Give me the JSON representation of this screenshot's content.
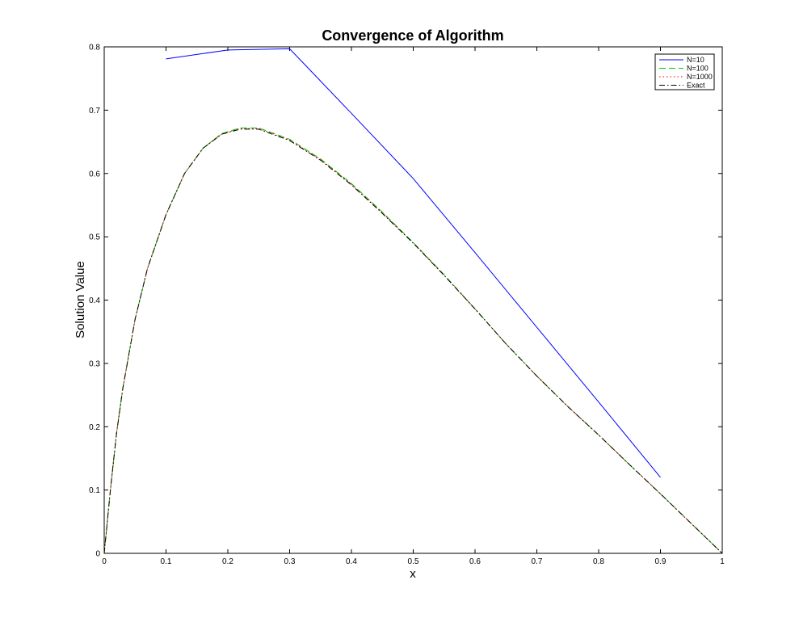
{
  "chart_data": {
    "type": "line",
    "title": "Convergence of Algorithm",
    "xlabel": "x",
    "ylabel": "Solution Value",
    "xlim": [
      0,
      1
    ],
    "ylim": [
      0,
      0.8
    ],
    "xticks": [
      0,
      0.1,
      0.2,
      0.3,
      0.4,
      0.5,
      0.6,
      0.7,
      0.8,
      0.9,
      1
    ],
    "xtick_labels": [
      "0",
      "0.1",
      "0.2",
      "0.3",
      "0.4",
      "0.5",
      "0.6",
      "0.7",
      "0.8",
      "0.9",
      "1"
    ],
    "yticks": [
      0,
      0.1,
      0.2,
      0.3,
      0.4,
      0.5,
      0.6,
      0.7,
      0.8
    ],
    "ytick_labels": [
      "0",
      "0.1",
      "0.2",
      "0.3",
      "0.4",
      "0.5",
      "0.6",
      "0.7",
      "0.8"
    ],
    "grid": false,
    "legend_position": "top-right",
    "series": [
      {
        "name": "N=10",
        "color": "#0000ff",
        "style": "solid",
        "x": [
          0.1,
          0.2,
          0.3,
          0.4,
          0.5,
          0.6,
          0.7,
          0.8,
          0.9
        ],
        "y": [
          0.781,
          0.795,
          0.797,
          0.695,
          0.592,
          0.475,
          0.357,
          0.239,
          0.12
        ]
      },
      {
        "name": "N=100",
        "color": "#00cc00",
        "style": "dashed",
        "x": [
          0,
          0.01,
          0.02,
          0.03,
          0.05,
          0.07,
          0.1,
          0.13,
          0.16,
          0.19,
          0.22,
          0.25,
          0.3,
          0.35,
          0.4,
          0.45,
          0.5,
          0.55,
          0.6,
          0.65,
          0.7,
          0.75,
          0.8,
          0.85,
          0.9,
          0.95,
          1.0
        ],
        "y": [
          0,
          0.1,
          0.19,
          0.26,
          0.37,
          0.45,
          0.535,
          0.6,
          0.64,
          0.663,
          0.672,
          0.672,
          0.654,
          0.623,
          0.584,
          0.539,
          0.491,
          0.44,
          0.386,
          0.331,
          0.28,
          0.232,
          0.187,
          0.14,
          0.094,
          0.047,
          0.0
        ]
      },
      {
        "name": "N=1000",
        "color": "#ff0000",
        "style": "dotted",
        "x": [
          0,
          0.01,
          0.02,
          0.03,
          0.05,
          0.07,
          0.1,
          0.13,
          0.16,
          0.19,
          0.22,
          0.25,
          0.3,
          0.35,
          0.4,
          0.45,
          0.5,
          0.55,
          0.6,
          0.65,
          0.7,
          0.75,
          0.8,
          0.85,
          0.9,
          0.95,
          1.0
        ],
        "y": [
          0,
          0.1,
          0.19,
          0.26,
          0.37,
          0.45,
          0.535,
          0.6,
          0.64,
          0.662,
          0.671,
          0.671,
          0.653,
          0.622,
          0.583,
          0.538,
          0.49,
          0.439,
          0.386,
          0.331,
          0.28,
          0.232,
          0.187,
          0.14,
          0.094,
          0.047,
          0.0
        ]
      },
      {
        "name": "Exact",
        "color": "#000000",
        "style": "dashdot",
        "x": [
          0,
          0.01,
          0.02,
          0.03,
          0.05,
          0.07,
          0.1,
          0.13,
          0.16,
          0.19,
          0.22,
          0.25,
          0.3,
          0.35,
          0.4,
          0.45,
          0.5,
          0.55,
          0.6,
          0.65,
          0.7,
          0.75,
          0.8,
          0.85,
          0.9,
          0.95,
          1.0
        ],
        "y": [
          0,
          0.1,
          0.19,
          0.26,
          0.37,
          0.45,
          0.535,
          0.6,
          0.64,
          0.662,
          0.67,
          0.67,
          0.652,
          0.621,
          0.582,
          0.537,
          0.49,
          0.439,
          0.386,
          0.331,
          0.28,
          0.232,
          0.187,
          0.14,
          0.094,
          0.047,
          0.0
        ]
      }
    ]
  }
}
